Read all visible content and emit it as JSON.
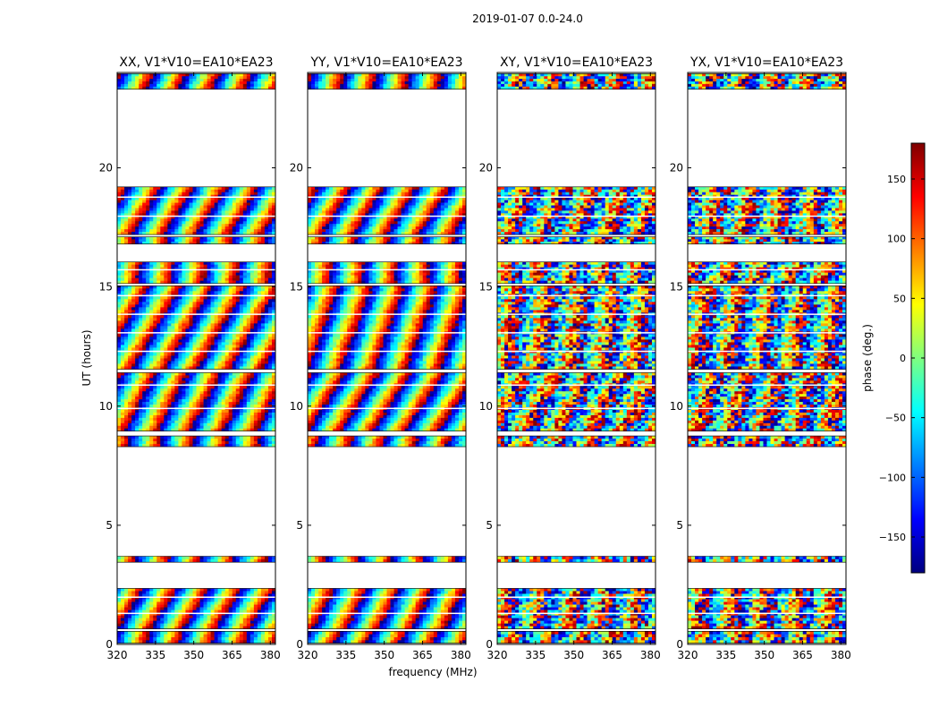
{
  "figure": {
    "suptitle": "2019-01-07 0.0-24.0",
    "xlabel": "frequency (MHz)",
    "ylabel": "UT (hours)"
  },
  "colorbar": {
    "label": "phase (deg.)",
    "range": [
      -180,
      180
    ],
    "ticks": [
      150,
      100,
      50,
      0,
      -50,
      -100,
      -150
    ],
    "tick_labels": [
      "150",
      "100",
      "50",
      "0",
      "−50",
      "−100",
      "−150"
    ],
    "colormap": [
      "#00007f",
      "#0000ff",
      "#007fff",
      "#00ffff",
      "#7fff7f",
      "#ffff00",
      "#ff7f00",
      "#ff0000",
      "#7f0000"
    ]
  },
  "chart_data": [
    {
      "type": "heatmap",
      "title": "XX, V1*V10=EA10*EA23",
      "xlabel": "",
      "ylabel": "UT (hours)",
      "xlim": [
        320,
        382
      ],
      "ylim": [
        0,
        24
      ],
      "xticks": [
        320,
        335,
        350,
        365,
        380
      ],
      "yticks": [
        0,
        5,
        10,
        15,
        20
      ],
      "value": "phase (deg.)",
      "data_bands_hours": [
        [
          0.05,
          0.55
        ],
        [
          0.65,
          2.35
        ],
        [
          3.45,
          3.7
        ],
        [
          8.3,
          8.75
        ],
        [
          8.95,
          11.4
        ],
        [
          11.55,
          15.05
        ],
        [
          15.15,
          16.05
        ],
        [
          16.8,
          17.1
        ],
        [
          17.2,
          19.2
        ],
        [
          23.3,
          23.95
        ]
      ]
    },
    {
      "type": "heatmap",
      "title": "YY, V1*V10=EA10*EA23",
      "xlabel": "frequency (MHz)",
      "ylabel": "",
      "xlim": [
        320,
        382
      ],
      "ylim": [
        0,
        24
      ],
      "xticks": [
        320,
        335,
        350,
        365,
        380
      ],
      "yticks": [
        0,
        5,
        10,
        15,
        20
      ],
      "value": "phase (deg.)",
      "data_bands_hours": [
        [
          0.05,
          0.55
        ],
        [
          0.65,
          2.35
        ],
        [
          3.45,
          3.7
        ],
        [
          8.3,
          8.75
        ],
        [
          8.95,
          11.4
        ],
        [
          11.55,
          15.05
        ],
        [
          15.15,
          16.05
        ],
        [
          16.8,
          17.1
        ],
        [
          17.2,
          19.2
        ],
        [
          23.3,
          23.95
        ]
      ]
    },
    {
      "type": "heatmap",
      "title": "XY, V1*V10=EA10*EA23",
      "xlabel": "",
      "ylabel": "",
      "xlim": [
        320,
        382
      ],
      "ylim": [
        0,
        24
      ],
      "xticks": [
        320,
        335,
        350,
        365,
        380
      ],
      "yticks": [
        0,
        5,
        10,
        15,
        20
      ],
      "value": "phase (deg.)",
      "data_bands_hours": [
        [
          0.05,
          0.55
        ],
        [
          0.65,
          2.35
        ],
        [
          3.45,
          3.7
        ],
        [
          8.3,
          8.75
        ],
        [
          8.95,
          11.4
        ],
        [
          11.55,
          15.05
        ],
        [
          15.15,
          16.05
        ],
        [
          16.8,
          17.1
        ],
        [
          17.2,
          19.2
        ],
        [
          23.3,
          23.95
        ]
      ]
    },
    {
      "type": "heatmap",
      "title": "YX, V1*V10=EA10*EA23",
      "xlabel": "",
      "ylabel": "",
      "xlim": [
        320,
        382
      ],
      "ylim": [
        0,
        24
      ],
      "xticks": [
        320,
        335,
        350,
        365,
        380
      ],
      "yticks": [
        0,
        5,
        10,
        15,
        20
      ],
      "value": "phase (deg.)",
      "data_bands_hours": [
        [
          0.05,
          0.55
        ],
        [
          0.65,
          2.35
        ],
        [
          3.45,
          3.7
        ],
        [
          8.3,
          8.75
        ],
        [
          8.95,
          11.4
        ],
        [
          11.55,
          15.05
        ],
        [
          15.15,
          16.05
        ],
        [
          16.8,
          17.1
        ],
        [
          17.2,
          19.2
        ],
        [
          23.3,
          23.95
        ]
      ]
    }
  ]
}
